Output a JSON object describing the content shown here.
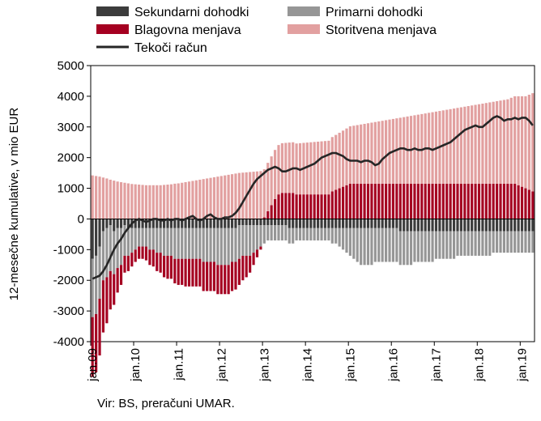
{
  "chart_data": {
    "type": "bar",
    "ylabel": "12-mesečne kumulative, v mio EUR",
    "ylim": [
      -4000,
      5000
    ],
    "yticks": [
      -4000,
      -3000,
      -2000,
      -1000,
      0,
      1000,
      2000,
      3000,
      4000,
      5000
    ],
    "ytick_labels": [
      "-4000",
      "-3000",
      "-2000",
      "-1000",
      "0",
      "1000",
      "2000",
      "3000",
      "4000",
      "5000"
    ],
    "x_start": "2009-01",
    "x_end": "2019-04",
    "xtick_labels": [
      "jan.09",
      "jan.10",
      "jan.11",
      "jan.12",
      "jan.13",
      "jan.14",
      "jan.15",
      "jan.16",
      "jan.17",
      "jan.18",
      "jan.19"
    ],
    "grid": "none",
    "legend_position": "top",
    "series": [
      {
        "name": "Sekundarni dohodki",
        "kind": "bar",
        "color": "#3c3c3c",
        "values": [
          -1300,
          -1200,
          -900,
          -400,
          -300,
          -200,
          -400,
          -300,
          -300,
          -200,
          -300,
          -300,
          -300,
          -300,
          -300,
          -300,
          -300,
          -300,
          -300,
          -300,
          -300,
          -300,
          -300,
          -300,
          -300,
          -300,
          -300,
          -300,
          -300,
          -300,
          -300,
          -300,
          -300,
          -300,
          -300,
          -300,
          -300,
          -300,
          -300,
          -300,
          -300,
          -200,
          -200,
          -200,
          -200,
          -200,
          -200,
          -200,
          -200,
          -200,
          -200,
          -200,
          -200,
          -200,
          -200,
          -300,
          -300,
          -300,
          -300,
          -300,
          -300,
          -300,
          -300,
          -300,
          -300,
          -300,
          -300,
          -300,
          -300,
          -300,
          -300,
          -300,
          -300,
          -300,
          -300,
          -300,
          -300,
          -300,
          -300,
          -300,
          -300,
          -300,
          -300,
          -300,
          -300,
          -300,
          -400,
          -400,
          -400,
          -400,
          -400,
          -400,
          -400,
          -400,
          -400,
          -400,
          -400,
          -400,
          -400,
          -400,
          -400,
          -400,
          -400,
          -400,
          -400,
          -400,
          -400,
          -400,
          -400,
          -400,
          -400,
          -400,
          -400,
          -400,
          -400,
          -400,
          -400,
          -400,
          -400,
          -400,
          -400,
          -400,
          -400,
          -400
        ]
      },
      {
        "name": "Primarni dohodki",
        "kind": "bar",
        "color": "#969696",
        "values": [
          -1900,
          -1900,
          -1700,
          -1600,
          -1600,
          -1500,
          -1400,
          -1300,
          -1200,
          -1000,
          -900,
          -800,
          -700,
          -600,
          -600,
          -600,
          -700,
          -700,
          -800,
          -800,
          -900,
          -900,
          -900,
          -1000,
          -1000,
          -1000,
          -1000,
          -1000,
          -1000,
          -1000,
          -1000,
          -1100,
          -1100,
          -1100,
          -1100,
          -1200,
          -1200,
          -1200,
          -1200,
          -1100,
          -1100,
          -1100,
          -1000,
          -1000,
          -1000,
          -900,
          -800,
          -700,
          -600,
          -500,
          -500,
          -500,
          -500,
          -500,
          -500,
          -500,
          -500,
          -400,
          -400,
          -400,
          -400,
          -400,
          -400,
          -400,
          -400,
          -400,
          -400,
          -500,
          -500,
          -600,
          -700,
          -800,
          -900,
          -1000,
          -1100,
          -1200,
          -1200,
          -1200,
          -1200,
          -1100,
          -1100,
          -1100,
          -1100,
          -1100,
          -1100,
          -1100,
          -1100,
          -1100,
          -1100,
          -1100,
          -1000,
          -1000,
          -1000,
          -1000,
          -1000,
          -1000,
          -900,
          -900,
          -900,
          -900,
          -900,
          -900,
          -800,
          -800,
          -800,
          -800,
          -800,
          -800,
          -800,
          -800,
          -800,
          -800,
          -700,
          -700,
          -700,
          -700,
          -700,
          -700,
          -700,
          -700,
          -700,
          -700,
          -700,
          -700
        ]
      },
      {
        "name": "Blagovna menjava",
        "kind": "bar",
        "color": "#a50021",
        "values": [
          -1950,
          -1900,
          -1850,
          -1700,
          -1500,
          -1250,
          -1000,
          -800,
          -650,
          -550,
          -500,
          -450,
          -400,
          -400,
          -400,
          -450,
          -500,
          -550,
          -600,
          -650,
          -700,
          -750,
          -750,
          -800,
          -850,
          -850,
          -900,
          -900,
          -900,
          -900,
          -900,
          -950,
          -950,
          -950,
          -950,
          -950,
          -950,
          -950,
          -950,
          -950,
          -900,
          -850,
          -800,
          -700,
          -550,
          -400,
          -250,
          -100,
          50,
          250,
          450,
          650,
          800,
          850,
          850,
          850,
          850,
          800,
          800,
          800,
          800,
          800,
          800,
          800,
          800,
          800,
          800,
          900,
          950,
          1000,
          1050,
          1100,
          1150,
          1150,
          1150,
          1150,
          1150,
          1150,
          1150,
          1150,
          1150,
          1150,
          1150,
          1150,
          1150,
          1150,
          1150,
          1150,
          1150,
          1150,
          1150,
          1150,
          1150,
          1150,
          1150,
          1150,
          1150,
          1150,
          1150,
          1150,
          1150,
          1150,
          1150,
          1150,
          1150,
          1150,
          1150,
          1150,
          1150,
          1150,
          1150,
          1150,
          1150,
          1150,
          1150,
          1150,
          1150,
          1150,
          1150,
          1100,
          1050,
          1000,
          950,
          900
        ]
      },
      {
        "name": "Storitvena menjava",
        "kind": "bar",
        "color": "#e2a0a0",
        "values": [
          1420,
          1400,
          1380,
          1350,
          1320,
          1280,
          1250,
          1220,
          1200,
          1180,
          1160,
          1140,
          1130,
          1120,
          1110,
          1100,
          1100,
          1100,
          1100,
          1100,
          1110,
          1120,
          1130,
          1150,
          1160,
          1180,
          1200,
          1220,
          1240,
          1260,
          1280,
          1300,
          1320,
          1340,
          1360,
          1380,
          1400,
          1420,
          1440,
          1460,
          1480,
          1500,
          1510,
          1520,
          1530,
          1540,
          1550,
          1560,
          1570,
          1580,
          1590,
          1600,
          1610,
          1620,
          1630,
          1640,
          1650,
          1660,
          1670,
          1680,
          1690,
          1700,
          1710,
          1720,
          1730,
          1740,
          1750,
          1770,
          1790,
          1810,
          1830,
          1850,
          1870,
          1890,
          1910,
          1930,
          1950,
          1970,
          1990,
          2010,
          2030,
          2050,
          2070,
          2090,
          2110,
          2130,
          2150,
          2170,
          2190,
          2210,
          2230,
          2250,
          2270,
          2290,
          2310,
          2330,
          2350,
          2370,
          2390,
          2410,
          2430,
          2450,
          2470,
          2490,
          2510,
          2530,
          2550,
          2570,
          2590,
          2610,
          2630,
          2650,
          2670,
          2690,
          2710,
          2730,
          2750,
          2800,
          2850,
          2900,
          2950,
          3000,
          3100,
          3200
        ]
      },
      {
        "name": "Tekoči račun",
        "kind": "line",
        "color": "#262626",
        "values": [
          -1950,
          -1900,
          -1850,
          -1700,
          -1500,
          -1250,
          -1000,
          -800,
          -650,
          -450,
          -300,
          -150,
          -50,
          0,
          -50,
          -100,
          -50,
          0,
          0,
          -50,
          -50,
          0,
          -50,
          0,
          0,
          -50,
          0,
          50,
          100,
          0,
          -50,
          0,
          100,
          150,
          50,
          0,
          0,
          50,
          50,
          100,
          200,
          350,
          550,
          750,
          950,
          1150,
          1300,
          1400,
          1500,
          1600,
          1650,
          1700,
          1650,
          1550,
          1550,
          1600,
          1650,
          1650,
          1600,
          1650,
          1700,
          1750,
          1800,
          1900,
          2000,
          2050,
          2100,
          2150,
          2150,
          2100,
          2050,
          1950,
          1900,
          1900,
          1900,
          1850,
          1900,
          1900,
          1850,
          1750,
          1800,
          1950,
          2050,
          2150,
          2200,
          2250,
          2300,
          2300,
          2250,
          2250,
          2300,
          2250,
          2250,
          2300,
          2300,
          2250,
          2300,
          2350,
          2400,
          2450,
          2500,
          2600,
          2700,
          2800,
          2900,
          2950,
          3000,
          3050,
          3000,
          3000,
          3100,
          3200,
          3300,
          3350,
          3300,
          3200,
          3250,
          3250,
          3300,
          3250,
          3300,
          3300,
          3200,
          3050
        ]
      }
    ]
  },
  "source_note": "Vir: BS, preračuni UMAR."
}
